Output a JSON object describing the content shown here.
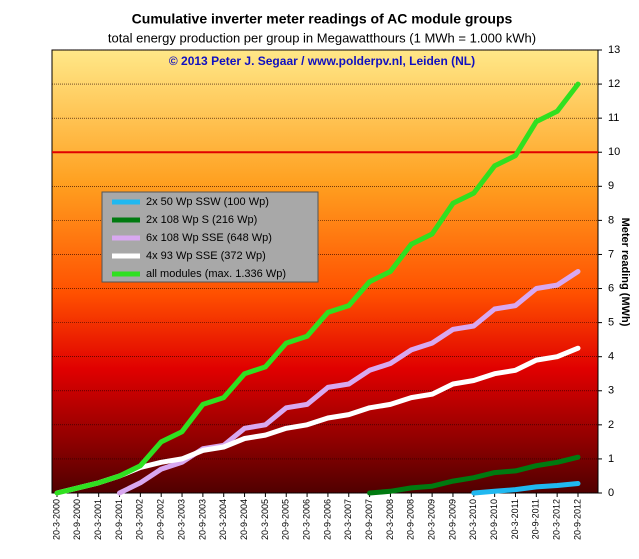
{
  "chart_data": {
    "type": "line",
    "title": "Cumulative inverter meter readings of AC module groups",
    "subtitle": "total energy production per group in Megawatthours (1 MWh =  1.000 kWh)",
    "annotation": "© 2013 Peter J. Segaar / www.polderpv.nl, Leiden (NL)",
    "y_label": "Meter reading (MWh)",
    "categories": [
      "20-3-2000",
      "20-9-2000",
      "20-3-2001",
      "20-9-2001",
      "20-3-2002",
      "20-9-2002",
      "20-3-2003",
      "20-9-2003",
      "20-3-2004",
      "20-9-2004",
      "20-3-2005",
      "20-9-2005",
      "20-3-2006",
      "20-9-2006",
      "20-3-2007",
      "20-9-2007",
      "20-3-2008",
      "20-9-2008",
      "20-3-2009",
      "20-9-2009",
      "20-3-2010",
      "20-9-2010",
      "20-3-2011",
      "20-9-2011",
      "20-3-2012",
      "20-9-2012"
    ],
    "series": [
      {
        "name": "2x 50 Wp SSW (100 Wp)",
        "color": "#20b8f0",
        "values": [
          null,
          null,
          null,
          null,
          null,
          null,
          null,
          null,
          null,
          null,
          null,
          null,
          null,
          null,
          null,
          null,
          null,
          null,
          null,
          null,
          0.0,
          0.05,
          0.1,
          0.18,
          0.22,
          0.28
        ]
      },
      {
        "name": "2x 108 Wp S (216 Wp)",
        "color": "#007a10",
        "values": [
          null,
          null,
          null,
          null,
          null,
          null,
          null,
          null,
          null,
          null,
          null,
          null,
          null,
          null,
          null,
          0.0,
          0.05,
          0.15,
          0.2,
          0.35,
          0.45,
          0.6,
          0.65,
          0.8,
          0.9,
          1.05
        ]
      },
      {
        "name": "6x 108 Wp SSE (648 Wp)",
        "color": "#d8a8f0",
        "values": [
          null,
          null,
          null,
          0.0,
          0.3,
          0.7,
          0.9,
          1.3,
          1.4,
          1.9,
          2.0,
          2.5,
          2.6,
          3.1,
          3.2,
          3.6,
          3.8,
          4.2,
          4.4,
          4.8,
          4.9,
          5.4,
          5.5,
          6.0,
          6.1,
          6.5
        ]
      },
      {
        "name": "4x 93 Wp SSE (372 Wp)",
        "color": "#ffffff",
        "values": [
          0.0,
          0.15,
          0.3,
          0.5,
          0.75,
          0.9,
          1.0,
          1.25,
          1.35,
          1.6,
          1.7,
          1.9,
          2.0,
          2.2,
          2.3,
          2.5,
          2.6,
          2.8,
          2.9,
          3.2,
          3.3,
          3.5,
          3.6,
          3.9,
          4.0,
          4.25
        ]
      },
      {
        "name": "all modules (max. 1.336 Wp)",
        "color": "#30e020",
        "values": [
          0.0,
          0.15,
          0.3,
          0.5,
          0.8,
          1.5,
          1.8,
          2.6,
          2.8,
          3.5,
          3.7,
          4.4,
          4.6,
          5.3,
          5.5,
          6.2,
          6.5,
          7.3,
          7.6,
          8.5,
          8.8,
          9.6,
          9.9,
          10.9,
          11.2,
          12.0
        ]
      }
    ],
    "reference_line": {
      "value": 10,
      "color": "#e00000"
    },
    "ylim": [
      0,
      13
    ],
    "yticks": [
      0,
      1,
      2,
      3,
      4,
      5,
      6,
      7,
      8,
      9,
      10,
      11,
      12,
      13
    ],
    "grid": true,
    "y_axis_side": "right"
  }
}
